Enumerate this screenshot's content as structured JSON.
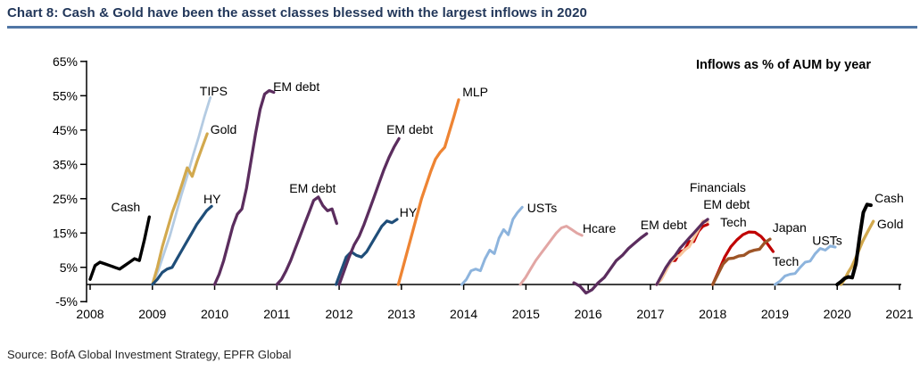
{
  "header": {
    "title": "Chart 8: Cash & Gold have been the asset classes blessed with the largest inflows in 2020"
  },
  "footer": {
    "source": "Source: BofA Global Investment Strategy, EPFR Global"
  },
  "colors": {
    "title_navy": "#22375a",
    "rule_blue": "#5076a5",
    "axis_black": "#000000"
  },
  "chart_data": {
    "type": "line",
    "title": "Chart 8: Cash & Gold have been the asset classes blessed with the largest inflows in 2020",
    "annotation": "Inflows as % of AUM by year",
    "ylabel": "Inflows as % of AUM",
    "grid": false,
    "legend_position": "inline-labels",
    "x_axis": {
      "min": 2008,
      "max": 2021,
      "years": [
        2008,
        2009,
        2010,
        2011,
        2012,
        2013,
        2014,
        2015,
        2016,
        2017,
        2018,
        2019,
        2020,
        2021
      ]
    },
    "y_axis": {
      "min": -5,
      "max": 65,
      "tick_values": [
        65,
        55,
        45,
        35,
        25,
        15,
        5,
        -5
      ],
      "tick_labels": [
        "65%",
        "55%",
        "45%",
        "35%",
        "25%",
        "15%",
        "5%",
        "-5%"
      ]
    },
    "series": [
      {
        "name": "Cash",
        "year": 2008,
        "color": "#000000",
        "w": 3.4,
        "x_start": 2008.0,
        "x_end": 2008.95,
        "values": [
          1.5,
          5.5,
          6.5,
          6.0,
          5.5,
          5.0,
          4.5,
          5.5,
          6.5,
          7.5,
          7.0,
          13.0,
          19.7
        ],
        "label": {
          "text": "Cash",
          "x": 2008.57,
          "y": 21.3,
          "anchor": "middle"
        }
      },
      {
        "name": "TIPS",
        "year": 2009,
        "color": "#b4cbe2",
        "w": 2.8,
        "x_start": 2009.0,
        "x_end": 2009.93,
        "values": [
          0,
          4,
          9,
          14,
          20,
          26,
          31.5,
          37.5,
          43,
          49,
          54.5
        ],
        "label": {
          "text": "TIPS",
          "x": 2009.76,
          "y": 55.1,
          "anchor": "start"
        }
      },
      {
        "name": "Gold",
        "year": 2009,
        "color": "#d2a94e",
        "w": 3.2,
        "x_start": 2009.0,
        "x_end": 2009.88,
        "values": [
          0,
          5,
          11,
          16,
          21,
          25,
          29.5,
          34,
          31.5,
          36,
          40,
          43.9
        ],
        "label": {
          "text": "Gold",
          "x": 2009.93,
          "y": 43.9,
          "anchor": "start"
        }
      },
      {
        "name": "HY",
        "year": 2009,
        "color": "#1f4e79",
        "w": 3.2,
        "x_start": 2009.0,
        "x_end": 2009.95,
        "values": [
          0,
          1.5,
          3.5,
          4.5,
          5,
          7.5,
          10,
          12.5,
          15,
          17.5,
          19.5,
          21.5,
          22.8
        ],
        "label": {
          "text": "HY",
          "x": 2009.82,
          "y": 23.6,
          "anchor": "start"
        }
      },
      {
        "name": "EM debt",
        "year": 2010,
        "color": "#5b2d5e",
        "w": 3.3,
        "x_start": 2010.0,
        "x_end": 2010.95,
        "values": [
          0,
          3,
          7,
          12,
          17,
          20.5,
          22,
          28,
          36,
          44,
          51,
          55.5,
          56.5,
          56
        ],
        "label": {
          "text": "EM debt",
          "x": 2010.94,
          "y": 56.4,
          "anchor": "start"
        }
      },
      {
        "name": "EM debt",
        "year": 2011,
        "color": "#5b2d5e",
        "w": 3.3,
        "x_start": 2011.0,
        "x_end": 2011.96,
        "values": [
          0,
          1.5,
          4,
          7,
          10.5,
          14,
          17.5,
          21,
          24.5,
          25.5,
          23,
          21.5,
          22,
          17.8
        ],
        "label": {
          "text": "EM debt",
          "x": 2011.2,
          "y": 26.8,
          "anchor": "start"
        }
      },
      {
        "name": "HY",
        "year": 2012,
        "color": "#1f4e79",
        "w": 3.2,
        "x_start": 2011.95,
        "x_end": 2012.93,
        "values": [
          0,
          4,
          8,
          9.5,
          8.5,
          8,
          9.5,
          12,
          14.5,
          17,
          18.5,
          18,
          19
        ],
        "label": {
          "text": "HY",
          "x": 2012.97,
          "y": 19.7,
          "anchor": "start"
        }
      },
      {
        "name": "EM debt",
        "year": 2012,
        "color": "#5b2d5e",
        "w": 3.3,
        "x_start": 2012.0,
        "x_end": 2012.96,
        "values": [
          0,
          4,
          8,
          11.5,
          14,
          17.5,
          21.5,
          25.5,
          29.5,
          33.5,
          37,
          40,
          42.5
        ],
        "label": {
          "text": "EM debt",
          "x": 2012.76,
          "y": 43.9,
          "anchor": "start"
        }
      },
      {
        "name": "MLP",
        "year": 2013,
        "color": "#ee8433",
        "w": 3.3,
        "x_start": 2012.95,
        "x_end": 2013.92,
        "values": [
          0,
          5,
          10,
          15,
          20,
          25,
          29,
          33,
          36.5,
          38.5,
          40,
          44.5,
          49,
          53.8
        ],
        "label": {
          "text": "MLP",
          "x": 2013.98,
          "y": 54.8,
          "anchor": "start"
        }
      },
      {
        "name": "USTs",
        "year": 2014,
        "color": "#8db4dd",
        "w": 3.0,
        "x_start": 2013.97,
        "x_end": 2014.94,
        "values": [
          0,
          1.5,
          4,
          4.5,
          4,
          7.5,
          10,
          9,
          13.5,
          16,
          14.5,
          19,
          21,
          22.5
        ],
        "label": {
          "text": "USTs",
          "x": 2015.02,
          "y": 21.0,
          "anchor": "start"
        }
      },
      {
        "name": "Hcare",
        "year": 2015,
        "color": "#e2a6a4",
        "w": 3.0,
        "x_start": 2014.91,
        "x_end": 2015.9,
        "values": [
          0,
          2,
          4.5,
          7,
          9,
          11,
          13,
          15,
          16.5,
          17,
          16,
          15,
          14.3
        ],
        "label": {
          "text": "Hcare",
          "x": 2015.91,
          "y": 15.1,
          "anchor": "start"
        }
      },
      {
        "name": "EM debt",
        "year": 2016,
        "color": "#5b2d5e",
        "w": 3.3,
        "x_start": 2015.77,
        "x_end": 2016.94,
        "values": [
          0.5,
          -0.5,
          -2.5,
          -1.5,
          0.5,
          2,
          4.5,
          7,
          8.5,
          10.5,
          12,
          13.5,
          14.8
        ],
        "label": {
          "text": "EM debt",
          "x": 2016.84,
          "y": 16.1,
          "anchor": "start"
        }
      },
      {
        "name": "Financials",
        "year": 2017,
        "color": "#c00000",
        "w": 3.2,
        "x_start": 2017.1,
        "x_end": 2017.92,
        "values": [
          0,
          2,
          4.5,
          7,
          7,
          9.5,
          10,
          12.5,
          12.5,
          15.5,
          17,
          17.5
        ],
        "label": {
          "text": "Financials",
          "x": 2017.63,
          "y": 27.0,
          "anchor": "start"
        }
      },
      {
        "name": "Tech",
        "year": 2017,
        "color": "#f7c59c",
        "w": 3.2,
        "x_start": 2017.1,
        "x_end": 2017.92,
        "values": [
          0,
          1.5,
          4,
          6.5,
          8,
          8.5,
          10,
          11,
          13.5,
          16,
          18.5,
          18.3
        ],
        "label": {
          "text": "Tech",
          "x": 2018.12,
          "y": 16.9,
          "anchor": "start"
        }
      },
      {
        "name": "EM debt",
        "year": 2017,
        "color": "#5b2d5e",
        "w": 3.2,
        "x_start": 2017.1,
        "x_end": 2017.92,
        "values": [
          0,
          2.5,
          5,
          7,
          8.5,
          10.5,
          12,
          13.5,
          15,
          16.5,
          18,
          19
        ],
        "label": {
          "text": "EM debt",
          "x": 2017.85,
          "y": 22.1,
          "anchor": "start"
        }
      },
      {
        "name": "Tech",
        "year": 2018,
        "color": "#c00000",
        "w": 3.2,
        "x_start": 2018.0,
        "x_end": 2018.97,
        "values": [
          0,
          4,
          8,
          11,
          13,
          14.5,
          15.3,
          15.2,
          14,
          12,
          9.6
        ],
        "label": {
          "text": "Tech",
          "x": 2018.96,
          "y": 5.5,
          "anchor": "start"
        }
      },
      {
        "name": "Japan",
        "year": 2018,
        "color": "#9e5527",
        "w": 3.4,
        "x_start": 2018.0,
        "x_end": 2018.92,
        "values": [
          0,
          3,
          6,
          7.5,
          7.7,
          8.3,
          8.5,
          9.5,
          10,
          10.3,
          12.2,
          13.2
        ],
        "label": {
          "text": "Japan",
          "x": 2018.96,
          "y": 15.3,
          "anchor": "start"
        }
      },
      {
        "name": "USTs",
        "year": 2019,
        "color": "#8db4dd",
        "w": 3.0,
        "x_start": 2019.0,
        "x_end": 2019.97,
        "values": [
          0,
          1,
          2.5,
          3,
          3.2,
          5,
          6.5,
          6.8,
          9,
          10.5,
          10,
          11.2,
          10.9
        ],
        "label": {
          "text": "USTs",
          "x": 2019.6,
          "y": 11.6,
          "anchor": "start"
        }
      },
      {
        "name": "Gold",
        "year": 2020,
        "color": "#d2a94e",
        "w": 3.4,
        "x_start": 2020.06,
        "x_end": 2020.58,
        "values": [
          0,
          1.5,
          3.5,
          5.2,
          7.5,
          10,
          12.5,
          14.5,
          16.5,
          18.4
        ],
        "label": {
          "text": "Gold",
          "x": 2020.64,
          "y": 16.4,
          "anchor": "start"
        }
      },
      {
        "name": "Cash",
        "year": 2020,
        "color": "#000000",
        "w": 4.0,
        "x_start": 2020.0,
        "x_end": 2020.54,
        "values": [
          0,
          0.8,
          1.8,
          2.2,
          2.0,
          6,
          14,
          21,
          23.3,
          23.1
        ],
        "label": {
          "text": "Cash",
          "x": 2020.6,
          "y": 23.9,
          "anchor": "start"
        }
      }
    ]
  }
}
